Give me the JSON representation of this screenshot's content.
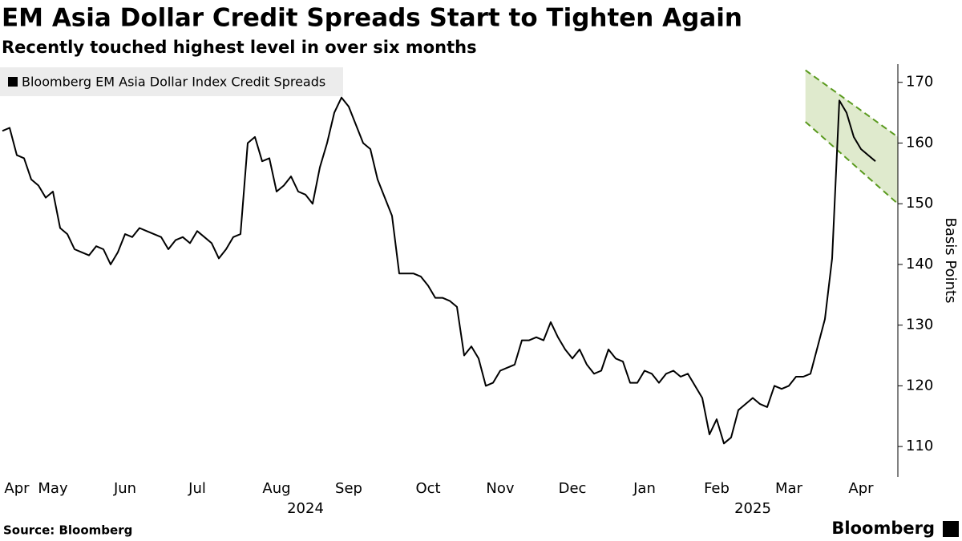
{
  "chart_data": {
    "type": "line",
    "title": "EM Asia Dollar Credit Spreads Start to Tighten Again",
    "subtitle": "Recently touched highest level in over six months",
    "y_label": "Basis Points",
    "source": "Source: Bloomberg",
    "brand": "Bloomberg",
    "categories": [
      null,
      null,
      "Apr",
      null,
      null,
      null,
      null,
      "May",
      null,
      null,
      null,
      null,
      null,
      null,
      null,
      null,
      null,
      "Jun",
      null,
      null,
      null,
      null,
      null,
      null,
      null,
      null,
      null,
      "Jul",
      null,
      null,
      null,
      null,
      null,
      null,
      null,
      null,
      null,
      null,
      "Aug",
      null,
      null,
      null,
      null,
      null,
      null,
      null,
      null,
      null,
      "Sep",
      null,
      null,
      null,
      null,
      null,
      null,
      null,
      null,
      null,
      null,
      "Oct",
      null,
      null,
      null,
      null,
      null,
      null,
      null,
      null,
      null,
      "Nov",
      null,
      null,
      null,
      null,
      null,
      null,
      null,
      null,
      null,
      "Dec",
      null,
      null,
      null,
      null,
      null,
      null,
      null,
      null,
      null,
      "Jan",
      null,
      null,
      null,
      null,
      null,
      null,
      null,
      null,
      null,
      "Feb",
      null,
      null,
      null,
      null,
      null,
      null,
      null,
      null,
      null,
      "Mar",
      null,
      null,
      null,
      null,
      null,
      null,
      null,
      null,
      null,
      "Apr",
      null,
      null
    ],
    "x_group_labels": [
      {
        "label": "2024",
        "index": 42
      },
      {
        "label": "2025",
        "index": 104
      }
    ],
    "series": [
      {
        "name": "Bloomberg EM Asia Dollar Index Credit Spreads",
        "color": "#000000",
        "values": [
          162,
          162.5,
          158,
          157.5,
          154,
          153,
          151,
          152,
          146,
          145,
          142.5,
          142,
          141.5,
          143,
          142.5,
          140,
          142,
          145,
          144.5,
          146,
          145.5,
          145,
          144.5,
          142.5,
          144,
          144.5,
          143.5,
          145.5,
          144.5,
          143.5,
          141,
          142.5,
          144.5,
          145,
          160,
          161,
          157,
          157.5,
          152,
          153,
          154.5,
          152,
          151.5,
          150,
          156,
          160,
          165,
          167.5,
          166,
          163,
          160,
          159,
          154,
          151,
          148,
          138.5,
          138.5,
          138.5,
          138,
          136.5,
          134.5,
          134.5,
          134,
          133,
          125,
          126.5,
          124.5,
          120,
          120.5,
          122.5,
          123,
          123.5,
          127.5,
          127.5,
          128,
          127.5,
          130.5,
          128,
          126,
          124.5,
          126,
          123.5,
          122,
          122.5,
          126,
          124.5,
          124,
          120.5,
          120.5,
          122.5,
          122,
          120.5,
          122,
          122.5,
          121.5,
          122,
          120,
          118,
          112,
          114.5,
          110.5,
          111.5,
          116,
          117,
          118,
          117,
          116.5,
          120,
          119.5,
          120,
          121.5,
          121.5,
          122,
          126.5,
          131,
          141,
          167,
          165,
          161,
          159,
          158,
          157
        ]
      }
    ],
    "channel": {
      "x": [
        111.3,
        124.1
      ],
      "upper": [
        172,
        161
      ],
      "lower": [
        163.5,
        150
      ],
      "fill": "#dfeacd",
      "stroke": "#5a9a1e"
    },
    "ylim": [
      105,
      173
    ],
    "yticks": [
      110,
      120,
      130,
      140,
      150,
      160,
      170
    ],
    "legend": "top-left",
    "legend_bg": "#ececec"
  }
}
